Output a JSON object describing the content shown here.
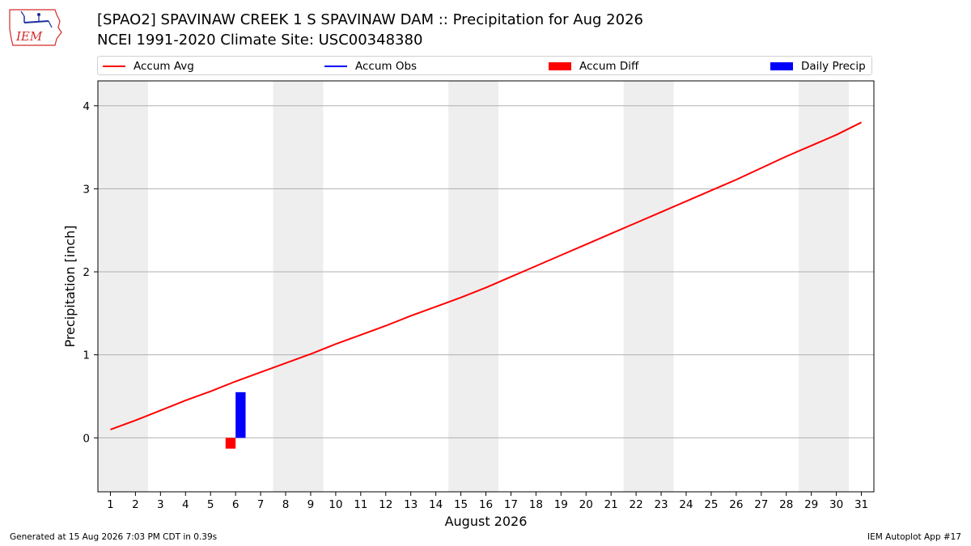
{
  "logo": {
    "text": "IEM",
    "color": "#d42a2a",
    "icon": "iowa-map-weather-station-icon"
  },
  "header": {
    "title_line1": "[SPAO2] SPAVINAW CREEK 1 S SPAVINAW DAM :: Precipitation for Aug 2026",
    "title_line2": "NCEI 1991-2020 Climate Site: USC00348380"
  },
  "legend": [
    {
      "label": "Accum Avg",
      "kind": "line",
      "color": "#ff0000"
    },
    {
      "label": "Accum Obs",
      "kind": "line",
      "color": "#0000ff"
    },
    {
      "label": "Accum Diff",
      "kind": "patch",
      "color": "#ff0000"
    },
    {
      "label": "Daily Precip",
      "kind": "patch",
      "color": "#0000ff"
    }
  ],
  "footer": {
    "left": "Generated at 15 Aug 2026 7:03 PM CDT in 0.39s",
    "right": "IEM Autoplot App #17"
  },
  "chart_data": {
    "type": "line",
    "xlabel": "August 2026",
    "ylabel": "Precipitation [inch]",
    "x": [
      1,
      2,
      3,
      4,
      5,
      6,
      7,
      8,
      9,
      10,
      11,
      12,
      13,
      14,
      15,
      16,
      17,
      18,
      19,
      20,
      21,
      22,
      23,
      24,
      25,
      26,
      27,
      28,
      29,
      30,
      31
    ],
    "xlim": [
      0.5,
      31.5
    ],
    "ylim": [
      -0.65,
      4.3
    ],
    "yticks": [
      0,
      1,
      2,
      3,
      4
    ],
    "grid": "y",
    "weekend_shading": [
      [
        0.5,
        2.5
      ],
      [
        7.5,
        9.5
      ],
      [
        14.5,
        16.5
      ],
      [
        21.5,
        23.5
      ],
      [
        28.5,
        30.5
      ]
    ],
    "shading_color": "#eeeeee",
    "series": [
      {
        "name": "Accum Avg",
        "type": "line",
        "color": "#ff0000",
        "values": [
          0.1,
          0.21,
          0.33,
          0.45,
          0.56,
          0.68,
          0.79,
          0.9,
          1.01,
          1.13,
          1.24,
          1.35,
          1.47,
          1.58,
          1.69,
          1.81,
          1.94,
          2.07,
          2.2,
          2.33,
          2.46,
          2.59,
          2.72,
          2.85,
          2.98,
          3.11,
          3.25,
          3.39,
          3.52,
          3.65,
          3.8
        ]
      },
      {
        "name": "Accum Diff",
        "type": "bar",
        "color": "#ff0000",
        "x": [
          6
        ],
        "values": [
          -0.13
        ],
        "offset": -0.2
      },
      {
        "name": "Daily Precip",
        "type": "bar",
        "color": "#0000ff",
        "x": [
          6
        ],
        "values": [
          0.55
        ],
        "offset": 0.2
      }
    ]
  }
}
